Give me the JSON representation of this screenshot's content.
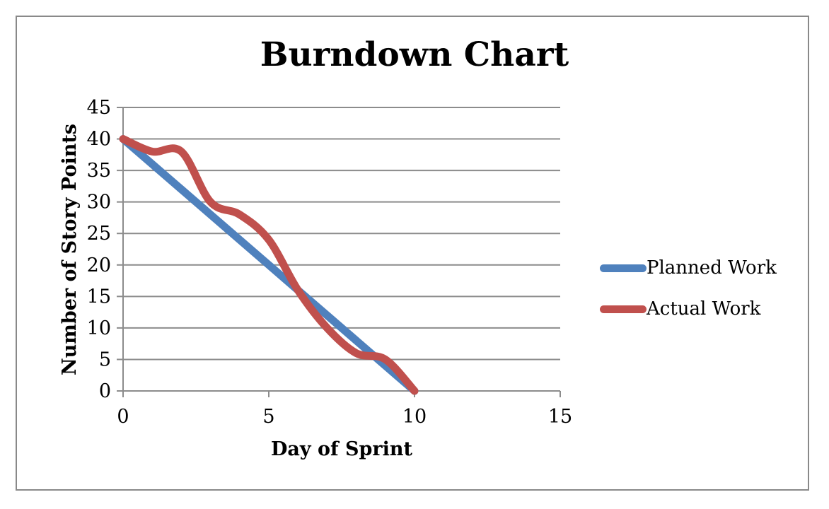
{
  "chart_data": {
    "type": "line",
    "title": "Burndown Chart",
    "xlabel": "Day of Sprint",
    "ylabel": "Number of Story Points",
    "x": [
      0,
      1,
      2,
      3,
      4,
      5,
      6,
      7,
      8,
      9,
      10
    ],
    "series": [
      {
        "name": "Planned Work",
        "color": "#4F81BD",
        "smooth": false,
        "values": [
          40,
          36,
          32,
          28,
          24,
          20,
          16,
          12,
          8,
          4,
          0
        ]
      },
      {
        "name": "Actual Work",
        "color": "#C0504D",
        "smooth": true,
        "values": [
          40,
          38,
          38,
          30,
          28,
          24,
          16,
          10,
          6,
          5,
          0
        ]
      }
    ],
    "xlim": [
      0,
      15
    ],
    "ylim": [
      0,
      45
    ],
    "x_ticks": [
      0,
      5,
      10,
      15
    ],
    "y_ticks": [
      0,
      5,
      10,
      15,
      20,
      25,
      30,
      35,
      40,
      45
    ],
    "grid": "horizontal-only",
    "legend_position": "right",
    "axis_color": "#8C8C8C",
    "gridline_color": "#8C8C8C",
    "frame_color": "#898989",
    "line_width": 11
  }
}
